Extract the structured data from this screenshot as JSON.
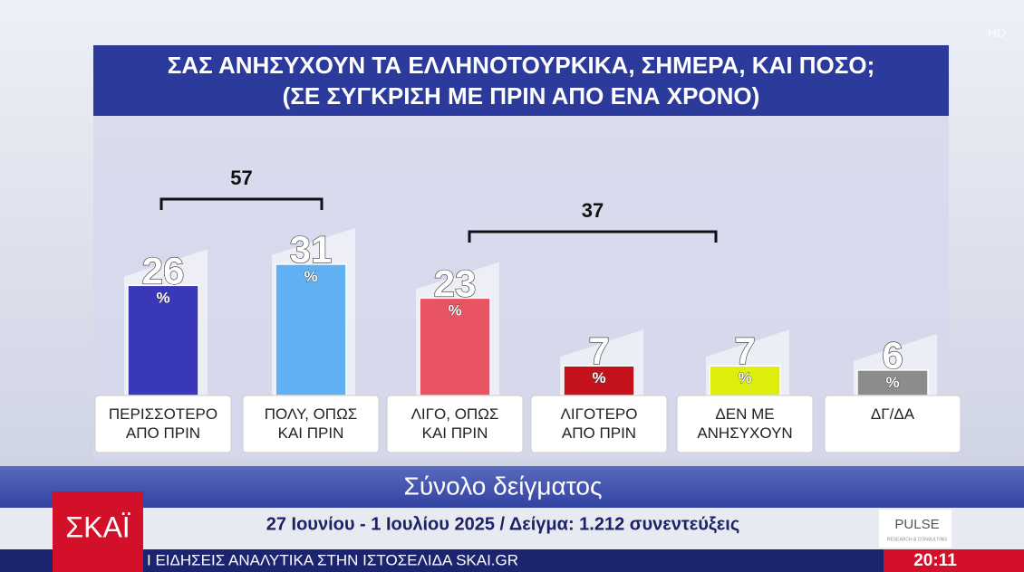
{
  "chart_data": {
    "type": "bar",
    "title": "ΣΑΣ ΑΝΗΣΥΧΟΥΝ ΤΑ ΕΛΛΗΝΟΤΟΥΡΚΙΚΑ, ΣΗΜΕΡΑ, ΚΑΙ ΠΟΣΟ;",
    "subtitle": "(ΣΕ ΣΥΓΚΡΙΣΗ ΜΕ ΠΡΙΝ ΑΠΟ ΕΝΑ ΧΡΟΝΟ)",
    "categories": [
      "ΠΕΡΙΣΣΟΤΕΡΟ\nΑΠΟ ΠΡΙΝ",
      "ΠΟΛΥ, ΟΠΩΣ\nΚΑΙ ΠΡΙΝ",
      "ΛΙΓΟ, ΟΠΩΣ\nΚΑΙ ΠΡΙΝ",
      "ΛΙΓΟΤΕΡΟ\nΑΠΟ ΠΡΙΝ",
      "ΔΕΝ ΜΕ\nΑΝΗΣΥΧΟΥΝ",
      "ΔΓ/ΔΑ"
    ],
    "values": [
      26,
      31,
      23,
      7,
      7,
      6
    ],
    "colors": [
      "#3838b8",
      "#62b0f4",
      "#ea5462",
      "#c4121c",
      "#dcee0a",
      "#8c8c8c"
    ],
    "unit": "%",
    "group_totals": [
      57,
      37
    ]
  },
  "broadcast": {
    "sample_label": "Σύνολο δείγματος",
    "survey_info": "27 Ιουνίου - 1 Ιουλίου  2025 / Δείγμα: 1.212 συνεντεύξεις",
    "channel_logo": "ΣΚΑΪ",
    "hd": "HD",
    "pollster": "PULSE",
    "pollster_sub": "RESEARCH & CONSULTING",
    "ticker": "Ι ΕΙΔΗΣΕΙΣ ΑΝΑΛΥΤΙΚΑ ΣΤΗΝ ΙΣΤΟΣΕΛΙΔΑ SKAI.GR",
    "time": "20:11"
  }
}
